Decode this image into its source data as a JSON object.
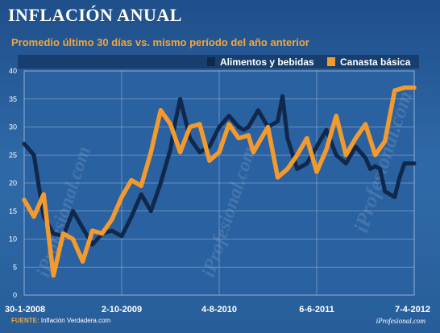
{
  "footer": {
    "source_label": "FUENTE:",
    "source_text": "Inflación Verdadera.com",
    "brand": "iProfesional.com"
  },
  "watermarks": [
    "iProfesional.com",
    "iProfesional.com",
    "iProfesional.com"
  ],
  "chart_data": {
    "type": "line",
    "title": "INFLACIÓN ANUAL",
    "subtitle": "Promedio último 30 días vs. mismo período del año anterior",
    "xlabel": "",
    "ylabel": "",
    "ylim": [
      0,
      40
    ],
    "yticks": [
      0,
      5,
      10,
      15,
      20,
      25,
      30,
      35,
      40
    ],
    "x_tick_labels": [
      "30-1-2008",
      "2-10-2009",
      "4-8-2010",
      "6-6-2011",
      "7-4-2012"
    ],
    "x_tick_positions": [
      0,
      20,
      40,
      60,
      80
    ],
    "xlim": [
      0,
      80
    ],
    "grid": true,
    "legend_position": "top-right",
    "series": [
      {
        "name": "Alimentos y bebidas",
        "color": "#10284c",
        "x": [
          0,
          2,
          4,
          6,
          8,
          10,
          12,
          14,
          16,
          18,
          20,
          22,
          24,
          26,
          28,
          30,
          31,
          32,
          34,
          36,
          37,
          38,
          40,
          42,
          44,
          45,
          46,
          48,
          50,
          52,
          53,
          54,
          56,
          58,
          60,
          62,
          64,
          66,
          68,
          70,
          71,
          72,
          73,
          74,
          76,
          77,
          78,
          80
        ],
        "values": [
          27,
          25,
          14,
          11,
          10.5,
          15,
          12,
          9,
          11,
          11.5,
          10.5,
          14,
          18,
          15,
          20,
          26,
          31,
          35,
          28,
          25.5,
          26,
          26.5,
          30,
          32,
          30,
          29.5,
          30,
          33,
          30,
          31,
          35.5,
          28,
          22.5,
          23.5,
          26.5,
          29.5,
          25,
          23.5,
          26.5,
          24.5,
          22.5,
          23,
          22.5,
          18.5,
          17.5,
          21,
          23.5,
          23.5
        ]
      },
      {
        "name": "Canasta básica",
        "color": "#f39a2e",
        "x": [
          0,
          2,
          4,
          6,
          8,
          10,
          12,
          14,
          16,
          18,
          20,
          22,
          24,
          26,
          28,
          30,
          32,
          34,
          36,
          38,
          40,
          42,
          44,
          46,
          47,
          48,
          50,
          52,
          54,
          56,
          58,
          60,
          62,
          64,
          66,
          68,
          70,
          72,
          74,
          76,
          78,
          80
        ],
        "values": [
          17,
          14,
          18,
          3.5,
          11,
          10,
          6,
          11.5,
          11,
          13.5,
          17.5,
          20.5,
          19.5,
          25.5,
          33,
          30.5,
          25.5,
          30,
          30.5,
          24,
          25.5,
          30.5,
          28,
          28.5,
          25.5,
          27,
          30,
          21,
          22.5,
          25,
          28,
          22,
          26,
          32,
          25,
          28,
          30.5,
          25,
          27.5,
          36.5,
          37,
          37
        ]
      }
    ]
  }
}
